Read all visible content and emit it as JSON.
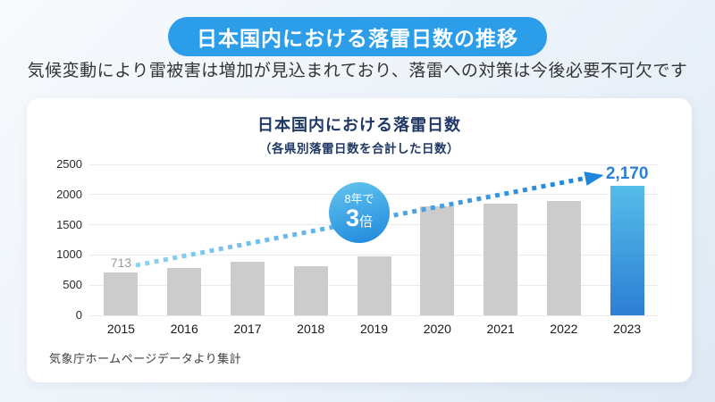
{
  "header": {
    "banner_title": "日本国内における落雷日数の推移",
    "subtitle": "気候変動により雷被害は増加が見込まれており、落雷への対策は今後必要不可欠です"
  },
  "card": {
    "source": "気象庁ホームページデータより集計"
  },
  "chart_data": {
    "type": "bar",
    "title": "日本国内における落雷日数",
    "subtitle": "（各県別落雷日数を合計した日数）",
    "categories": [
      "2015",
      "2016",
      "2017",
      "2018",
      "2019",
      "2020",
      "2021",
      "2022",
      "2023"
    ],
    "values": [
      713,
      790,
      890,
      820,
      975,
      1800,
      1855,
      1890,
      2170
    ],
    "xlabel": "",
    "ylabel": "",
    "ylim": [
      0,
      2500
    ],
    "yticks": [
      0,
      500,
      1000,
      1500,
      2000,
      2500
    ],
    "grid": true,
    "legend": "none",
    "highlight_index": 8,
    "annotations": {
      "first_bar_label": "713",
      "arrow_label": "2,170",
      "badge": {
        "line1": "8年で",
        "number": "3",
        "unit": "倍"
      }
    }
  },
  "colors": {
    "banner_bg": "#2b9de9",
    "banner_text": "#ffffff",
    "chart_title_text": "#1f3864",
    "bar_default": "#cccccc",
    "bar_highlight_top": "#55bde9",
    "bar_highlight_bottom": "#2d7ed5",
    "arrow_gradient_start": "#8ed2f2",
    "arrow_gradient_end": "#1f86db",
    "badge_gradient_top": "#63c5ee",
    "badge_gradient_bottom": "#1e88dc",
    "first_label_text": "#9c9c9c",
    "arrow_label_text": "#2b7fd6",
    "background": "#eaf1f9",
    "card_bg": "#ffffff"
  }
}
